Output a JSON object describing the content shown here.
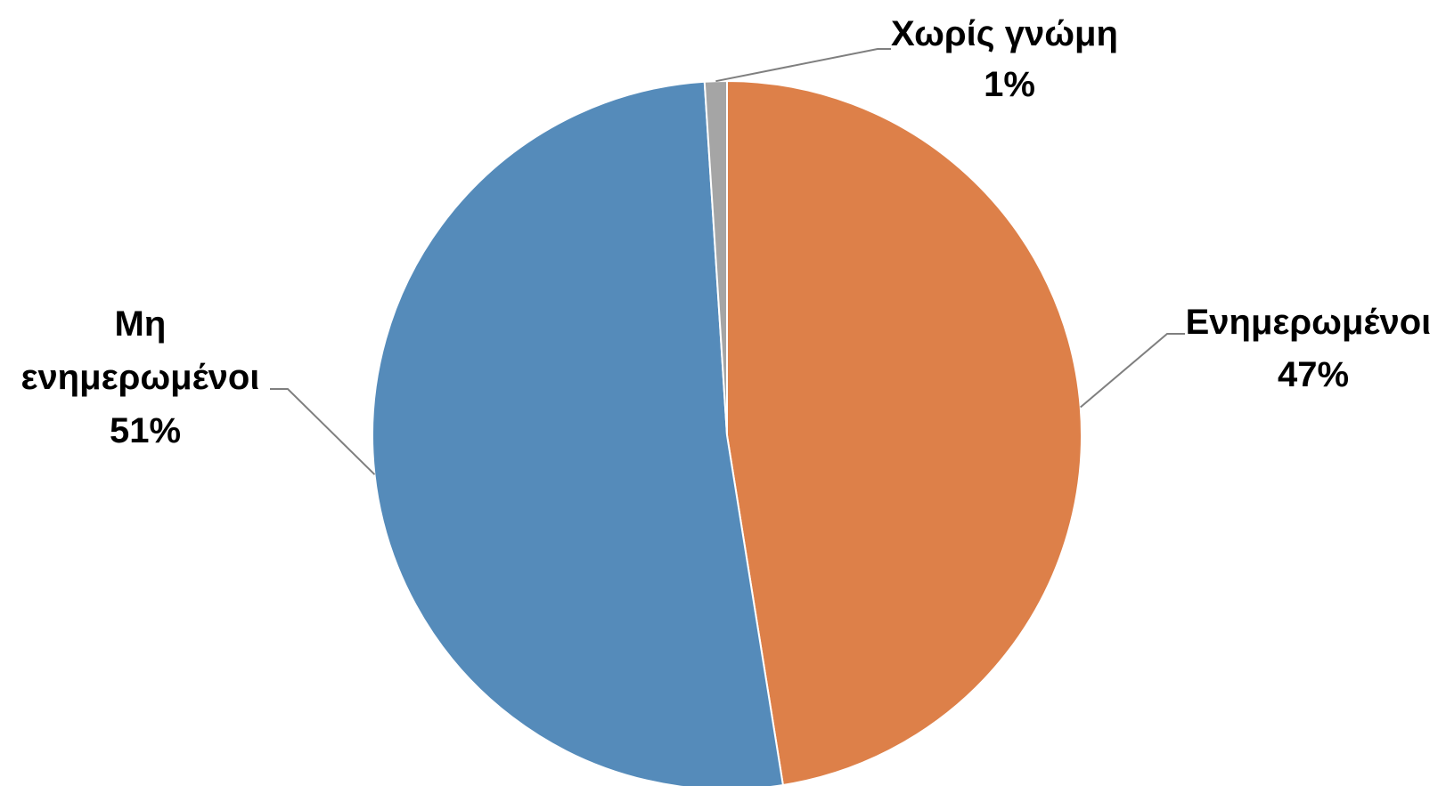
{
  "chart_data": {
    "type": "pie",
    "title": "",
    "start_angle_deg": 0,
    "direction": "clockwise",
    "slices": [
      {
        "name": "Ενημερωμένοι",
        "value": 47,
        "value_label": "47%",
        "label_lines": [
          "Ενημερωμένοι"
        ],
        "color": "#dd8049"
      },
      {
        "name": "Μη ενημερωμένοι",
        "value": 51,
        "value_label": "51%",
        "label_lines": [
          "Μη",
          "ενημερωμένοι"
        ],
        "color": "#558bba"
      },
      {
        "name": "Χωρίς γνώμη",
        "value": 1,
        "value_label": "1%",
        "label_lines": [
          "Χωρίς γνώμη"
        ],
        "color": "#a5a5a5"
      }
    ],
    "slice_border_color": "#ffffff",
    "leader_line_color": "#7f7f7f",
    "legend": "none"
  }
}
